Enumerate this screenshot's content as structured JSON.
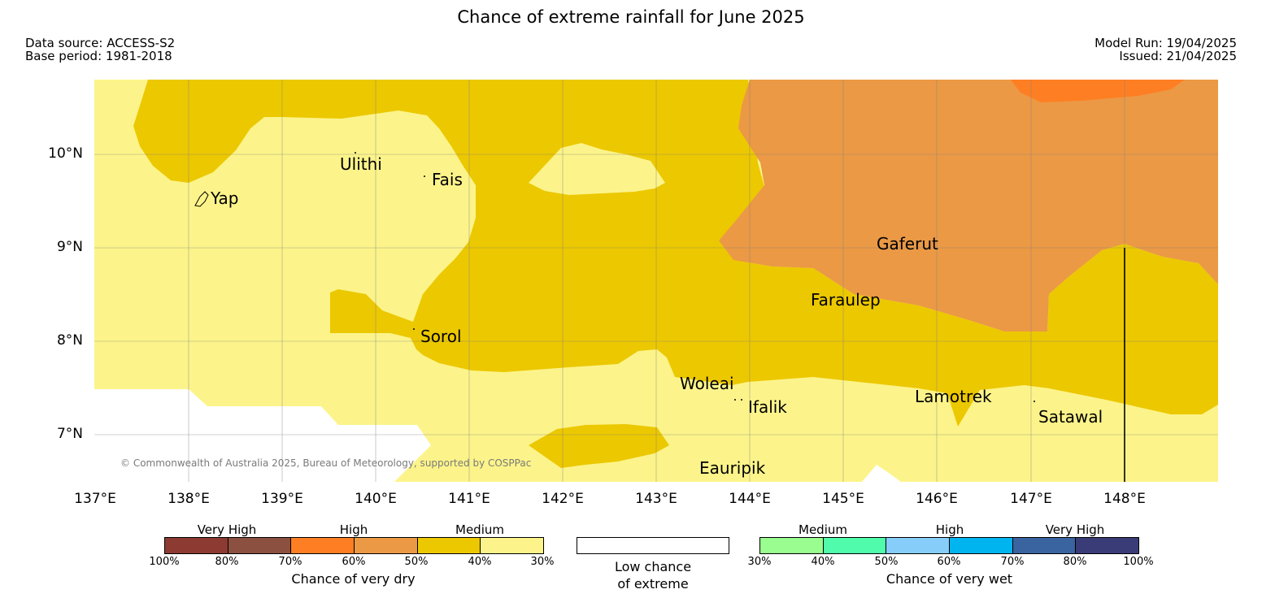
{
  "header": {
    "title": "Chance of extreme rainfall for June 2025",
    "data_source": "Data source: ACCESS-S2",
    "base_period": "Base period: 1981-2018",
    "model_run": "Model Run: 19/04/2025",
    "issued": "Issued: 21/04/2025"
  },
  "map": {
    "latitude_labels": [
      "10°N",
      "9°N",
      "8°N",
      "7°N"
    ],
    "longitude_labels": [
      "137°E",
      "138°E",
      "139°E",
      "140°E",
      "141°E",
      "142°E",
      "143°E",
      "144°E",
      "145°E",
      "146°E",
      "147°E",
      "148°E"
    ],
    "places": [
      "Yap",
      "Ulithi",
      "Fais",
      "Sorol",
      "Gaferut",
      "Faraulep",
      "Woleai",
      "Ifalik",
      "Lamotrek",
      "Satawal",
      "Eauripik"
    ],
    "copyright": "© Commonwealth of Australia 2025, Bureau of Meteorology, supported by COSPPac",
    "colors": {
      "dry_30_40": "#fcf48a",
      "dry_40_50": "#ecc800",
      "dry_50_60": "#eb9945",
      "dry_60_70": "#fe7f23",
      "low_chance": "#ffffff"
    }
  },
  "legend": {
    "dry": {
      "levels": [
        "Very High",
        "High",
        "Medium"
      ],
      "ticks": [
        "100%",
        "80%",
        "70%",
        "60%",
        "50%",
        "40%",
        "30%"
      ],
      "title": "Chance of very dry",
      "colors": [
        "#8c3a32",
        "#8c5040",
        "#fe7f23",
        "#eb9945",
        "#ecc800",
        "#fcf48a"
      ]
    },
    "low": {
      "line1": "Low chance",
      "line2": "of extreme"
    },
    "wet": {
      "levels": [
        "Medium",
        "High",
        "Very High"
      ],
      "ticks": [
        "30%",
        "40%",
        "50%",
        "60%",
        "70%",
        "80%",
        "100%"
      ],
      "title": "Chance of very wet",
      "colors": [
        "#9afd8f",
        "#50fcab",
        "#87cdfa",
        "#00b4f0",
        "#3a64a0",
        "#3a3c78"
      ]
    }
  }
}
